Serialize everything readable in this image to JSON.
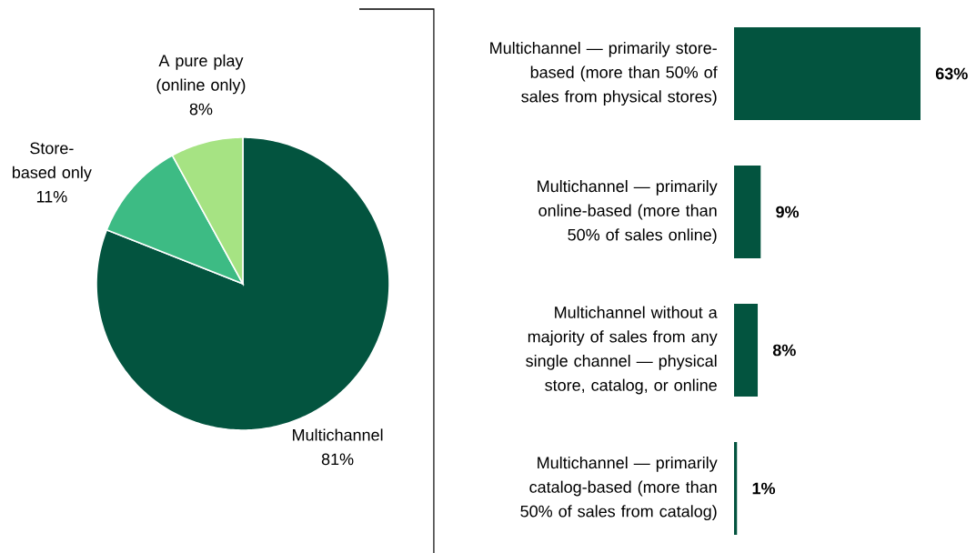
{
  "chart_data": [
    {
      "type": "pie",
      "categories": [
        "Multichannel",
        "Store-based only",
        "A pure play (online only)"
      ],
      "values": [
        81,
        11,
        8
      ],
      "colors": [
        "#03543f",
        "#3dbb84",
        "#a6e383"
      ],
      "value_labels": [
        "81%",
        "11%",
        "8%"
      ]
    },
    {
      "type": "bar",
      "orientation": "horizontal",
      "categories": [
        "Multichannel — primarily store-based (more than 50% of sales from physical stores)",
        "Multichannel — primarily online-based (more than 50% of sales online)",
        "Multichannel without a majority of sales from any single channel — physical store, catalog, or online",
        "Multichannel — primarily catalog-based (more than 50% of sales from catalog)"
      ],
      "values": [
        63,
        9,
        8,
        1
      ],
      "color": "#03543f",
      "value_labels": [
        "63%",
        "9%",
        "8%",
        "1%"
      ]
    }
  ]
}
